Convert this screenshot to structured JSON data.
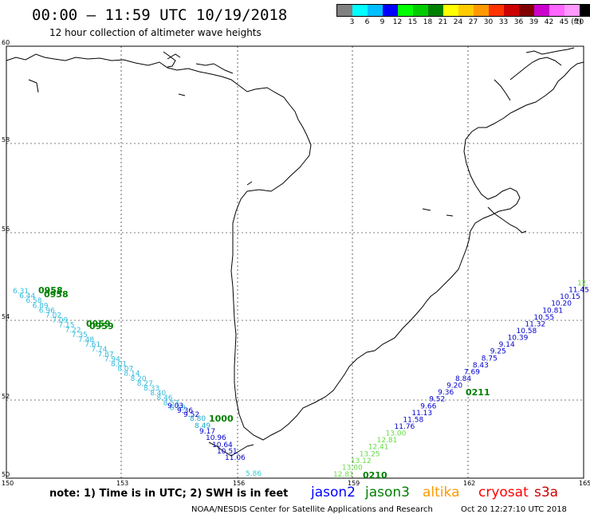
{
  "header": {
    "title": "00:00 – 11:59 UTC 10/19/2018",
    "subtitle": "12 hour collection of altimeter wave heights"
  },
  "color_scale": {
    "colors": [
      "#808080",
      "#00ffff",
      "#00bfff",
      "#0000ff",
      "#00ff00",
      "#00cc00",
      "#008000",
      "#ffff00",
      "#ffcc00",
      "#ff9900",
      "#ff3300",
      "#cc0000",
      "#800000",
      "#cc00cc",
      "#ff66ff",
      "#ff99ff",
      "#000000"
    ],
    "labels": [
      "3",
      "6",
      "9",
      "12",
      "15",
      "18",
      "21",
      "24",
      "27",
      "30",
      "33",
      "36",
      "39",
      "42",
      "45",
      "70"
    ],
    "unit": "(ft)"
  },
  "map": {
    "lat_labels": [
      "60",
      "58",
      "56",
      "54",
      "52",
      "50"
    ],
    "lon_labels": [
      "150",
      "153",
      "156",
      "159",
      "162",
      "165"
    ]
  },
  "tracks": {
    "track_a_values": [
      "6.31",
      "6.44",
      "6.58",
      "6.89",
      "6.96",
      "7.02",
      "7.09",
      "7.15",
      "7.22",
      "7.35",
      "7.48",
      "7.61",
      "7.74",
      "7.87",
      "7.94",
      "8.01",
      "8.07",
      "8.14",
      "8.20",
      "8.27",
      "8.33",
      "8.40",
      "8.46",
      "8.53",
      "8.59"
    ],
    "track_a_blue_values": [
      "9.03",
      "9.36",
      "9.52",
      "8.80",
      "8.49",
      "9.17",
      "10.96",
      "10.64",
      "10.51",
      "11.06"
    ],
    "track_a_times": [
      "0958",
      "0958",
      "0959",
      "0959",
      "1000"
    ],
    "track_a_cyan_value": "5.86",
    "track_b_values": [
      "12.81",
      "13.00",
      "13.12",
      "13.25",
      "12.41",
      "12.81",
      "13.00",
      "11.76",
      "11.58",
      "11.13",
      "9.66",
      "9.52",
      "9.36",
      "9.20",
      "8.84",
      "7.69",
      "8.43",
      "8.75",
      "9.25",
      "9.14",
      "10.39",
      "10.58",
      "11.32",
      "10.55",
      "10.81",
      "10.20",
      "10.15",
      "11.45",
      "12.1"
    ],
    "track_b_times": [
      "0211",
      "0210"
    ]
  },
  "footer": {
    "note": "note: 1) Time is in UTC; 2) SWH is in feet",
    "legend": [
      {
        "label": "jason2",
        "color": "#0000ff"
      },
      {
        "label": "jason3",
        "color": "#008000"
      },
      {
        "label": "altika",
        "color": "#ff9900"
      },
      {
        "label": "cryosat",
        "color": "#ff0000"
      },
      {
        "label": "s3a",
        "color": "#cc0000"
      }
    ],
    "credit": "NOAA/NESDIS Center for Satellite Applications and Research",
    "timestamp": "Oct 20 12:27:10 UTC 2018"
  }
}
